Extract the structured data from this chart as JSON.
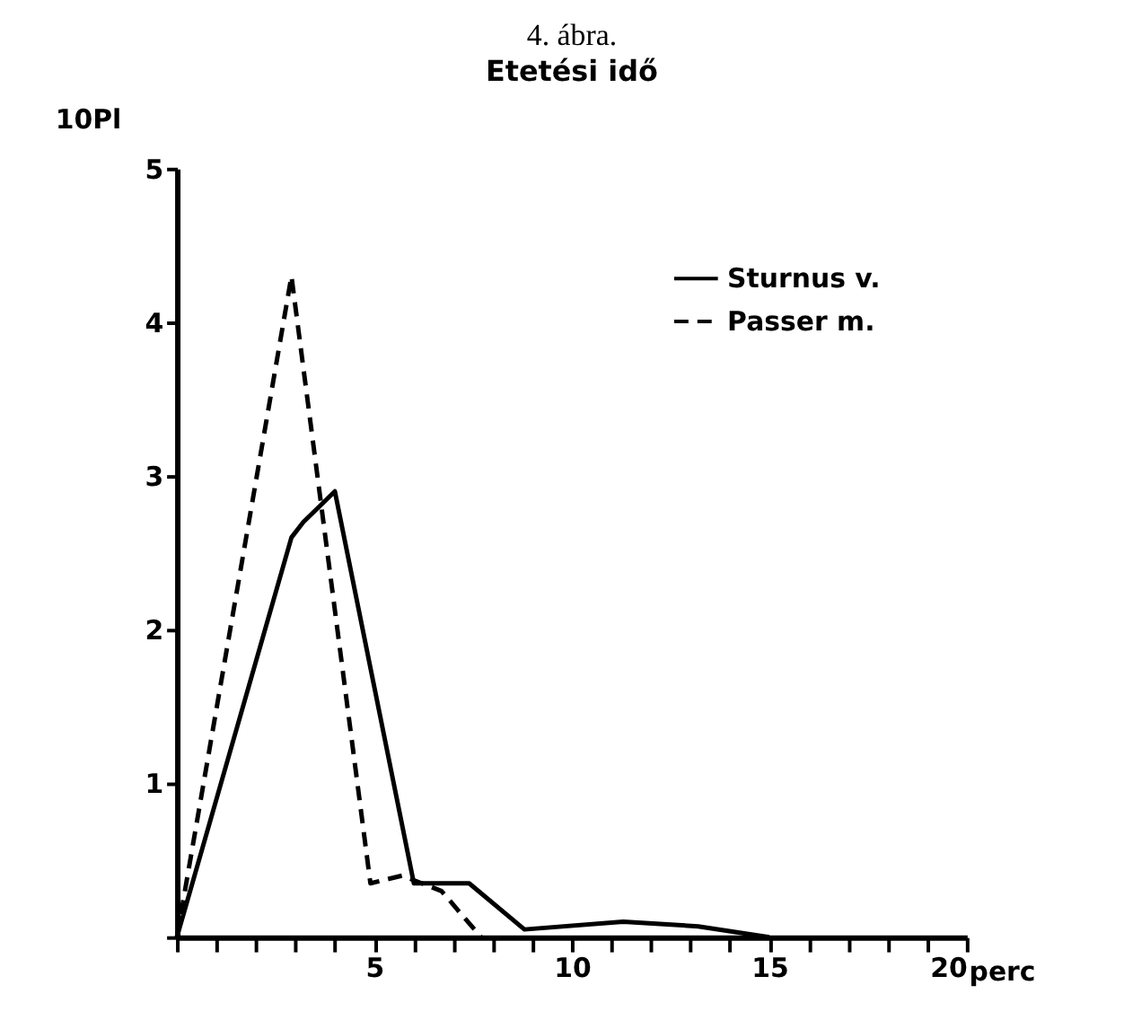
{
  "chart_data": {
    "type": "line",
    "title": "4. ábra.",
    "subtitle": "Etetési idő",
    "xlabel": "perc",
    "ylabel": "10Pl",
    "series": [
      {
        "name": "Sturnus v.",
        "color": "#000000",
        "line_style": "solid",
        "x": [
          0,
          2.9,
          3.2,
          4.0,
          6.0,
          7.4,
          8.8,
          11.3,
          13.2,
          15
        ],
        "values": [
          0,
          2.6,
          2.7,
          2.9,
          0.35,
          0.35,
          0.05,
          0.1,
          0.07,
          0
        ]
      },
      {
        "name": "Passer m.",
        "color": "#000000",
        "line_style": "dashed",
        "x": [
          0,
          2.9,
          4.9,
          5.7,
          6.7,
          7.7
        ],
        "values": [
          0,
          4.3,
          0.35,
          0.4,
          0.3,
          0
        ]
      }
    ],
    "xlim": [
      0,
      20
    ],
    "ylim": [
      0,
      5
    ],
    "xticks": [
      {
        "value": 0,
        "label": null
      },
      {
        "value": 1,
        "label": null
      },
      {
        "value": 2,
        "label": null
      },
      {
        "value": 3,
        "label": null
      },
      {
        "value": 4,
        "label": null
      },
      5,
      {
        "value": 6,
        "label": null
      },
      {
        "value": 7,
        "label": null
      },
      {
        "value": 8,
        "label": null
      },
      {
        "value": 9,
        "label": null
      },
      10,
      {
        "value": 11,
        "label": null
      },
      {
        "value": 12,
        "label": null
      },
      {
        "value": 13,
        "label": null
      },
      {
        "value": 14,
        "label": null
      },
      15,
      {
        "value": 16,
        "label": null
      },
      {
        "value": 17,
        "label": null
      },
      {
        "value": 18,
        "label": null
      },
      {
        "value": 19,
        "label": null
      },
      20
    ],
    "yticks": [
      {
        "value": 0,
        "label": null
      },
      1,
      2,
      3,
      4,
      5
    ],
    "grid": false,
    "legend": "top right",
    "marker": "none"
  }
}
